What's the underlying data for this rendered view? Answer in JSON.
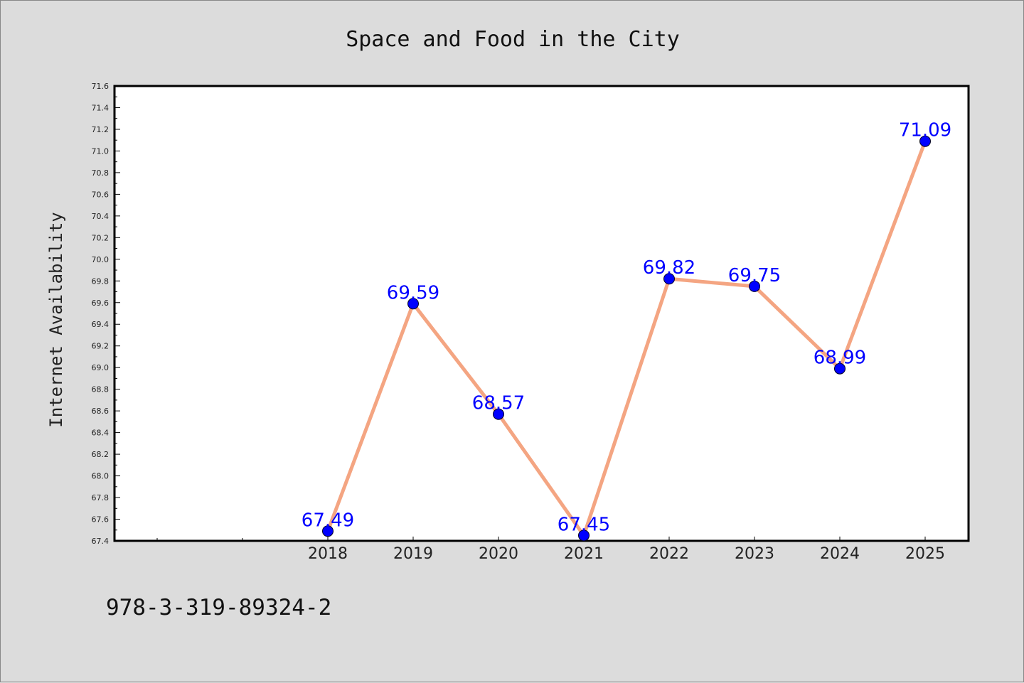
{
  "chart_data": {
    "type": "line",
    "title": "Space and Food in the City",
    "xlabel": "",
    "ylabel": "Internet Availability",
    "categories": [
      "2018",
      "2019",
      "2020",
      "2021",
      "2022",
      "2023",
      "2024",
      "2025"
    ],
    "series": [
      {
        "values": [
          67.49,
          69.59,
          68.57,
          67.45,
          69.82,
          69.75,
          68.99,
          71.09
        ],
        "line_color": "#f4a582",
        "marker_color": "#0000ff"
      }
    ],
    "data_labels": [
      "67.49",
      "69.59",
      "68.57",
      "67.45",
      "69.82",
      "69.75",
      "68.99",
      "71.09"
    ],
    "ylim": [
      67.4,
      71.6
    ],
    "yticks": [
      "67.4",
      "67.6",
      "67.8",
      "68.0",
      "68.2",
      "68.4",
      "68.6",
      "68.8",
      "69.0",
      "69.2",
      "69.4",
      "69.6",
      "69.8",
      "70.0",
      "70.2",
      "70.4",
      "70.6",
      "70.8",
      "71.0",
      "71.2",
      "71.4",
      "71.6"
    ],
    "grid": false,
    "legend": "none",
    "label_color": "#0000ff",
    "background": "#dcdcdc",
    "plot_background": "#ffffff"
  },
  "footer": {
    "isbn": "978-3-319-89324-2"
  }
}
